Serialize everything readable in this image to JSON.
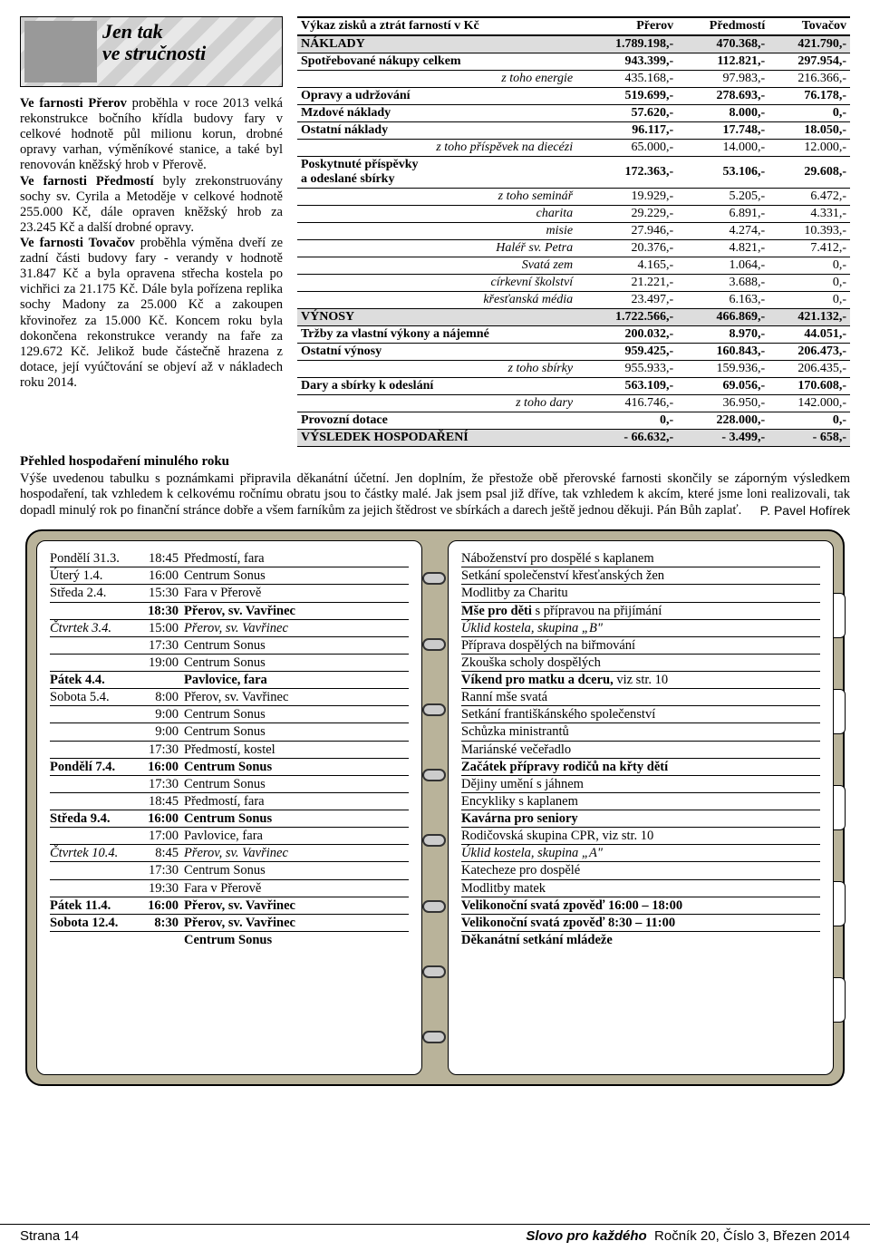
{
  "header": {
    "line1": "Jen tak",
    "line2": "ve stručnosti"
  },
  "article": {
    "p1a": "Ve farnosti Přerov",
    "p1b": " proběhla v roce 2013 velká rekonstrukce bočního křídla budovy fary v celkové hodnotě půl milionu korun, drobné opravy varhan, výměníkové stanice, a také byl renovován kněžský hrob v Přerově.",
    "p2a": "Ve farnosti Předmostí",
    "p2b": " byly zrekonstruovány sochy sv. Cyrila a Metoděje v celkové hodnotě 255.000 Kč, dále opraven kněžský hrob za 23.245 Kč a další drobné opravy.",
    "p3a": "Ve farnosti Tovačov",
    "p3b": " proběhla výměna dveří ze zadní části budovy fary - verandy v hodnotě 31.847 Kč a byla opravena střecha kostela po vichřici za 21.175 Kč. Dále byla pořízena replika sochy Madony za 25.000 Kč a zakoupen křovinořez za 15.000 Kč. Koncem roku byla dokončena rekonstrukce verandy na faře za 129.672 Kč. Jelikož bude částečně hrazena z dotace, její vyúčtování se objeví až v nákladech roku 2014."
  },
  "fin": {
    "title": "Výkaz zisků a ztrát farností v Kč",
    "cols": [
      "Přerov",
      "Předmostí",
      "Tovačov"
    ],
    "rows": [
      {
        "t": "section",
        "l": "NÁKLADY",
        "v": [
          "1.789.198,-",
          "470.368,-",
          "421.790,-"
        ]
      },
      {
        "t": "b",
        "l": "Spotřebované nákupy celkem",
        "v": [
          "943.399,-",
          "112.821,-",
          "297.954,-"
        ]
      },
      {
        "t": "sub",
        "l": "z toho energie",
        "v": [
          "435.168,-",
          "97.983,-",
          "216.366,-"
        ]
      },
      {
        "t": "b",
        "l": "Opravy a udržování",
        "v": [
          "519.699,-",
          "278.693,-",
          "76.178,-"
        ]
      },
      {
        "t": "b",
        "l": "Mzdové náklady",
        "v": [
          "57.620,-",
          "8.000,-",
          "0,-"
        ]
      },
      {
        "t": "b",
        "l": "Ostatní náklady",
        "v": [
          "96.117,-",
          "17.748,-",
          "18.050,-"
        ]
      },
      {
        "t": "sub",
        "l": "z toho příspěvek na diecézi",
        "v": [
          "65.000,-",
          "14.000,-",
          "12.000,-"
        ]
      },
      {
        "t": "b",
        "l": "Poskytnuté příspěvky\na odeslané sbírky",
        "v": [
          "172.363,-",
          "53.106,-",
          "29.608,-"
        ]
      },
      {
        "t": "sub",
        "l": "z toho seminář",
        "v": [
          "19.929,-",
          "5.205,-",
          "6.472,-"
        ]
      },
      {
        "t": "sub",
        "l": "charita",
        "v": [
          "29.229,-",
          "6.891,-",
          "4.331,-"
        ]
      },
      {
        "t": "sub",
        "l": "misie",
        "v": [
          "27.946,-",
          "4.274,-",
          "10.393,-"
        ]
      },
      {
        "t": "sub",
        "l": "Haléř sv. Petra",
        "v": [
          "20.376,-",
          "4.821,-",
          "7.412,-"
        ]
      },
      {
        "t": "sub",
        "l": "Svatá zem",
        "v": [
          "4.165,-",
          "1.064,-",
          "0,-"
        ]
      },
      {
        "t": "sub",
        "l": "církevní školství",
        "v": [
          "21.221,-",
          "3.688,-",
          "0,-"
        ]
      },
      {
        "t": "sub",
        "l": "křesťanská média",
        "v": [
          "23.497,-",
          "6.163,-",
          "0,-"
        ]
      },
      {
        "t": "section",
        "l": "VÝNOSY",
        "v": [
          "1.722.566,-",
          "466.869,-",
          "421.132,-"
        ]
      },
      {
        "t": "b",
        "l": "Tržby za vlastní výkony a nájemné",
        "v": [
          "200.032,-",
          "8.970,-",
          "44.051,-"
        ]
      },
      {
        "t": "b",
        "l": "Ostatní výnosy",
        "v": [
          "959.425,-",
          "160.843,-",
          "206.473,-"
        ]
      },
      {
        "t": "sub",
        "l": "z toho sbírky",
        "v": [
          "955.933,-",
          "159.936,-",
          "206.435,-"
        ]
      },
      {
        "t": "b",
        "l": "Dary a sbírky k odeslání",
        "v": [
          "563.109,-",
          "69.056,-",
          "170.608,-"
        ]
      },
      {
        "t": "sub",
        "l": "z toho dary",
        "v": [
          "416.746,-",
          "36.950,-",
          "142.000,-"
        ]
      },
      {
        "t": "b",
        "l": "Provozní dotace",
        "v": [
          "0,-",
          "228.000,-",
          "0,-"
        ]
      },
      {
        "t": "section",
        "l": "VÝSLEDEK HOSPODAŘENÍ",
        "v": [
          "- 66.632,-",
          "- 3.499,-",
          "- 658,-"
        ]
      }
    ]
  },
  "overview": {
    "title": "Přehled hospodaření minulého roku",
    "text": "Výše uvedenou tabulku s poznámkami připravila děkanátní účetní. Jen doplním, že přestože obě přerovské farnosti skončily se záporným výsledkem hospodaření, tak vzhledem k celkovému ročnímu obratu jsou to částky malé. Jak jsem psal již dříve, tak vzhledem k akcím, které jsme loni realizovali, tak dopadl minulý rok po finanční stránce dobře a všem farníkům za jejich štědrost ve sbírkách a darech ještě jednou děkuji. Pán Bůh zaplať.",
    "sig": "P. Pavel Hofírek"
  },
  "schedule": {
    "left": [
      {
        "d": "Pondělí 31.3.",
        "t": "18:45",
        "p": "Předmostí, fara",
        "s": ""
      },
      {
        "d": "Úterý 1.4.",
        "t": "16:00",
        "p": "Centrum Sonus",
        "s": ""
      },
      {
        "d": "Středa 2.4.",
        "t": "15:30",
        "p": "Fara v Přerově",
        "s": ""
      },
      {
        "d": "",
        "t": "18:30",
        "p": "Přerov, sv. Vavřinec",
        "s": "b"
      },
      {
        "d": "Čtvrtek 3.4.",
        "t": "15:00",
        "p": "Přerov, sv. Vavřinec",
        "s": "i"
      },
      {
        "d": "",
        "t": "17:30",
        "p": "Centrum Sonus",
        "s": ""
      },
      {
        "d": "",
        "t": "19:00",
        "p": "Centrum Sonus",
        "s": ""
      },
      {
        "d": "Pátek 4.4.",
        "t": "",
        "p": "Pavlovice, fara",
        "s": "b"
      },
      {
        "d": "Sobota 5.4.",
        "t": "8:00",
        "p": "Přerov, sv. Vavřinec",
        "s": ""
      },
      {
        "d": "",
        "t": "9:00",
        "p": "Centrum Sonus",
        "s": ""
      },
      {
        "d": "",
        "t": "9:00",
        "p": "Centrum Sonus",
        "s": ""
      },
      {
        "d": "",
        "t": "17:30",
        "p": "Předmostí, kostel",
        "s": ""
      },
      {
        "d": "Pondělí 7.4.",
        "t": "16:00",
        "p": "Centrum Sonus",
        "s": "b"
      },
      {
        "d": "",
        "t": "17:30",
        "p": "Centrum Sonus",
        "s": ""
      },
      {
        "d": "",
        "t": "18:45",
        "p": "Předmostí, fara",
        "s": ""
      },
      {
        "d": "Středa 9.4.",
        "t": "16:00",
        "p": "Centrum Sonus",
        "s": "b"
      },
      {
        "d": "",
        "t": "17:00",
        "p": "Pavlovice, fara",
        "s": ""
      },
      {
        "d": "Čtvrtek 10.4.",
        "t": "8:45",
        "p": "Přerov, sv. Vavřinec",
        "s": "i"
      },
      {
        "d": "",
        "t": "17:30",
        "p": "Centrum Sonus",
        "s": ""
      },
      {
        "d": "",
        "t": "19:30",
        "p": "Fara v Přerově",
        "s": ""
      },
      {
        "d": "Pátek 11.4.",
        "t": "16:00",
        "p": "Přerov, sv. Vavřinec",
        "s": "b"
      },
      {
        "d": "Sobota 12.4.",
        "t": "8:30",
        "p": "Přerov, sv. Vavřinec",
        "s": "b"
      },
      {
        "d": "",
        "t": "",
        "p": "Centrum Sonus",
        "s": "b"
      }
    ],
    "right": [
      {
        "e": "Náboženství pro dospělé s kaplanem",
        "s": ""
      },
      {
        "e": "Setkání společenství křesťanských žen",
        "s": ""
      },
      {
        "e": "Modlitby za Charitu",
        "s": ""
      },
      {
        "e": "Mše pro děti",
        "e2": " s přípravou na přijímání",
        "s": "b"
      },
      {
        "e": "Úklid kostela, skupina „B\"",
        "s": "i"
      },
      {
        "e": "Příprava dospělých na biřmování",
        "s": ""
      },
      {
        "e": "Zkouška scholy dospělých",
        "s": ""
      },
      {
        "e": "Víkend pro matku a dceru,",
        "e2": " viz str. 10",
        "s": "b"
      },
      {
        "e": "Ranní mše svatá",
        "s": ""
      },
      {
        "e": "Setkání františkánského společenství",
        "s": ""
      },
      {
        "e": "Schůzka ministrantů",
        "s": ""
      },
      {
        "e": "Mariánské večeřadlo",
        "s": ""
      },
      {
        "e": "Začátek přípravy rodičů na křty dětí",
        "s": "b"
      },
      {
        "e": "Dějiny umění s jáhnem",
        "s": ""
      },
      {
        "e": "Encykliky s kaplanem",
        "s": ""
      },
      {
        "e": "Kavárna pro seniory",
        "s": "b"
      },
      {
        "e": "Rodičovská skupina CPR, viz str. 10",
        "s": ""
      },
      {
        "e": "Úklid kostela, skupina „A\"",
        "s": "i"
      },
      {
        "e": "Katecheze pro dospělé",
        "s": ""
      },
      {
        "e": "Modlitby matek",
        "s": ""
      },
      {
        "e": "Velikonoční svatá zpověď 16:00 – 18:00",
        "s": "b"
      },
      {
        "e": "Velikonoční svatá zpověď 8:30 – 11:00",
        "s": "b"
      },
      {
        "e": "Děkanátní setkání mládeže",
        "s": "b"
      }
    ]
  },
  "footer": {
    "left": "Strana 14",
    "title": "Slovo pro každého",
    "right": "Ročník 20, Číslo 3, Březen 2014"
  }
}
